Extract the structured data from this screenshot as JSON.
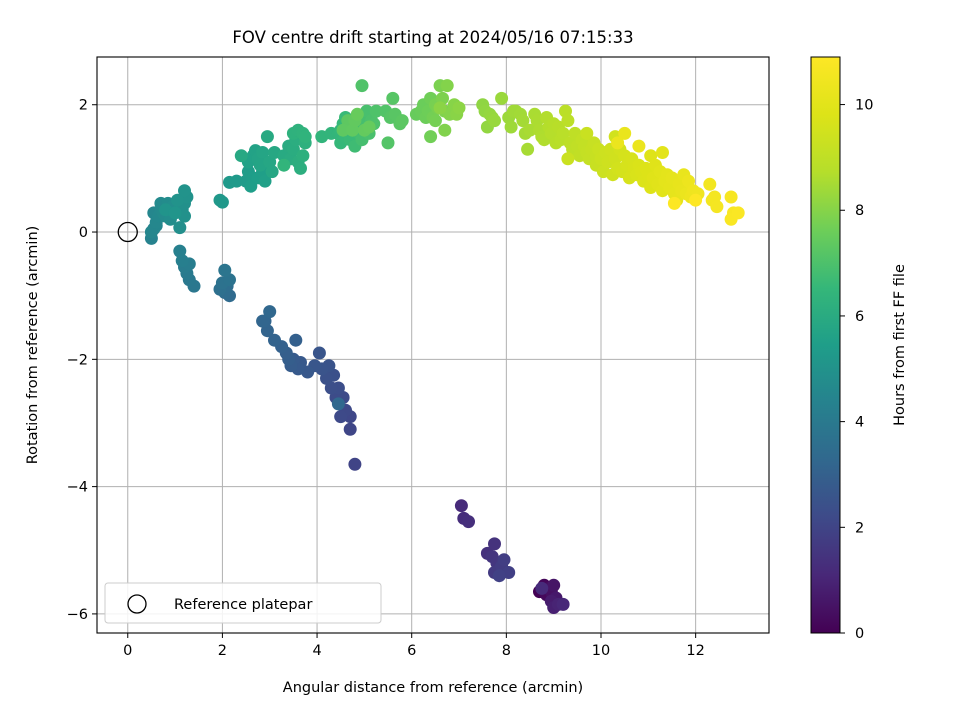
{
  "chart_data": {
    "type": "scatter",
    "title": "FOV centre drift starting at 2024/05/16 07:15:33",
    "xlabel": "Angular distance from reference (arcmin)",
    "ylabel": "Rotation from reference (arcmin)",
    "xlim": [
      -0.65,
      13.55
    ],
    "ylim": [
      -6.3,
      2.75
    ],
    "xticks": [
      0,
      2,
      4,
      6,
      8,
      10,
      12
    ],
    "yticks": [
      -6,
      -4,
      -2,
      0,
      2
    ],
    "xtick_labels": [
      "0",
      "2",
      "4",
      "6",
      "8",
      "10",
      "12"
    ],
    "ytick_labels": [
      "−6",
      "−4",
      "−2",
      "0",
      "2"
    ],
    "grid": true,
    "legend": {
      "label": "Reference platepar",
      "position": "bottom-left"
    },
    "reference_point": {
      "x": 0,
      "y": 0
    },
    "colorbar": {
      "label": "Hours from first FF file",
      "range": [
        0,
        10.9
      ],
      "ticks": [
        0,
        2,
        4,
        6,
        8,
        10
      ],
      "tick_labels": [
        "0",
        "2",
        "4",
        "6",
        "8",
        "10"
      ],
      "colormap": "viridis"
    },
    "point_groups": [
      {
        "hours": [
          0.0,
          1.2
        ],
        "points": [
          [
            8.7,
            -5.65
          ],
          [
            8.8,
            -5.55
          ],
          [
            8.85,
            -5.7
          ],
          [
            8.9,
            -5.6
          ],
          [
            8.95,
            -5.65
          ],
          [
            9.0,
            -5.55
          ],
          [
            9.05,
            -5.75
          ],
          [
            8.95,
            -5.8
          ],
          [
            9.0,
            -5.9
          ],
          [
            9.1,
            -5.85
          ],
          [
            9.2,
            -5.85
          ],
          [
            8.75,
            -5.6
          ]
        ]
      },
      {
        "hours": [
          1.2,
          1.9
        ],
        "points": [
          [
            7.05,
            -4.3
          ],
          [
            7.1,
            -4.5
          ],
          [
            7.2,
            -4.55
          ],
          [
            7.6,
            -5.05
          ],
          [
            7.75,
            -4.9
          ],
          [
            7.7,
            -5.1
          ],
          [
            7.8,
            -5.2
          ],
          [
            7.85,
            -5.3
          ],
          [
            7.75,
            -5.35
          ],
          [
            7.9,
            -5.25
          ],
          [
            7.95,
            -5.15
          ],
          [
            8.05,
            -5.35
          ],
          [
            7.85,
            -5.4
          ]
        ]
      },
      {
        "hours": [
          2.0,
          3.3
        ],
        "points": [
          [
            4.8,
            -3.65
          ],
          [
            4.7,
            -3.1
          ],
          [
            4.7,
            -2.9
          ],
          [
            4.6,
            -2.8
          ],
          [
            4.5,
            -2.9
          ],
          [
            4.55,
            -2.6
          ],
          [
            4.4,
            -2.6
          ],
          [
            4.45,
            -2.45
          ],
          [
            4.3,
            -2.45
          ],
          [
            4.35,
            -2.25
          ],
          [
            4.2,
            -2.3
          ],
          [
            4.25,
            -2.1
          ],
          [
            4.1,
            -2.15
          ],
          [
            4.05,
            -1.9
          ],
          [
            3.95,
            -2.1
          ],
          [
            3.8,
            -2.2
          ],
          [
            3.65,
            -2.05
          ],
          [
            3.6,
            -2.15
          ],
          [
            3.5,
            -2.0
          ],
          [
            3.45,
            -2.1
          ],
          [
            3.4,
            -2.0
          ],
          [
            3.35,
            -1.9
          ],
          [
            3.55,
            -1.7
          ],
          [
            3.25,
            -1.8
          ],
          [
            3.1,
            -1.7
          ],
          [
            2.95,
            -1.55
          ],
          [
            2.9,
            -1.4
          ],
          [
            2.85,
            -1.4
          ],
          [
            3.0,
            -1.25
          ],
          [
            4.45,
            -2.7
          ]
        ]
      },
      {
        "hours": [
          3.4,
          4.5
        ],
        "points": [
          [
            2.15,
            -1.0
          ],
          [
            2.05,
            -0.95
          ],
          [
            2.1,
            -0.85
          ],
          [
            1.95,
            -0.9
          ],
          [
            2.0,
            -0.8
          ],
          [
            2.15,
            -0.75
          ],
          [
            2.05,
            -0.6
          ],
          [
            1.4,
            -0.85
          ],
          [
            1.3,
            -0.75
          ],
          [
            1.25,
            -0.65
          ],
          [
            1.2,
            -0.55
          ],
          [
            1.3,
            -0.5
          ],
          [
            1.15,
            -0.45
          ],
          [
            1.1,
            -0.3
          ],
          [
            0.5,
            -0.1
          ],
          [
            0.55,
            0.05
          ],
          [
            0.6,
            0.1
          ]
        ]
      },
      {
        "hours": [
          4.5,
          5.1
        ],
        "points": [
          [
            0.5,
            0.0
          ],
          [
            0.55,
            0.3
          ],
          [
            0.6,
            0.15
          ],
          [
            0.65,
            0.25
          ],
          [
            0.7,
            0.35
          ],
          [
            0.7,
            0.45
          ],
          [
            0.75,
            0.3
          ],
          [
            0.8,
            0.25
          ],
          [
            0.85,
            0.45
          ],
          [
            0.9,
            0.2
          ],
          [
            0.95,
            0.4
          ],
          [
            1.1,
            0.07
          ],
          [
            1.15,
            0.35
          ],
          [
            1.2,
            0.45
          ],
          [
            1.2,
            0.25
          ],
          [
            1.25,
            0.55
          ],
          [
            1.2,
            0.65
          ],
          [
            1.05,
            0.5
          ],
          [
            0.8,
            0.35
          ],
          [
            1.0,
            0.3
          ]
        ]
      },
      {
        "hours": [
          5.2,
          6.4
        ],
        "points": [
          [
            1.95,
            0.5
          ],
          [
            2.0,
            0.47
          ],
          [
            2.15,
            0.78
          ],
          [
            2.3,
            0.8
          ],
          [
            2.5,
            0.8
          ],
          [
            2.55,
            0.95
          ],
          [
            2.65,
            0.85
          ],
          [
            2.6,
            0.72
          ],
          [
            2.75,
            0.85
          ],
          [
            2.85,
            0.95
          ],
          [
            2.9,
            0.8
          ],
          [
            2.55,
            1.1
          ],
          [
            2.65,
            1.2
          ],
          [
            2.7,
            1.28
          ],
          [
            2.75,
            1.15
          ],
          [
            2.8,
            1.05
          ],
          [
            2.85,
            1.25
          ],
          [
            3.0,
            1.1
          ],
          [
            3.05,
            0.95
          ],
          [
            3.1,
            1.25
          ],
          [
            2.4,
            1.2
          ],
          [
            2.95,
            1.5
          ],
          [
            3.3,
            1.2
          ],
          [
            3.4,
            1.35
          ],
          [
            3.45,
            1.15
          ],
          [
            3.5,
            1.3
          ],
          [
            3.55,
            1.45
          ],
          [
            3.6,
            1.1
          ],
          [
            3.65,
            1.0
          ],
          [
            3.7,
            1.2
          ],
          [
            3.75,
            1.4
          ],
          [
            3.5,
            1.55
          ],
          [
            3.6,
            1.6
          ],
          [
            3.7,
            1.55
          ],
          [
            3.75,
            1.5
          ],
          [
            3.3,
            1.05
          ]
        ]
      },
      {
        "hours": [
          6.4,
          7.5
        ],
        "points": [
          [
            4.1,
            1.5
          ],
          [
            4.3,
            1.55
          ],
          [
            4.45,
            1.55
          ],
          [
            4.5,
            1.6
          ],
          [
            4.5,
            1.4
          ],
          [
            4.55,
            1.7
          ],
          [
            4.6,
            1.5
          ],
          [
            4.6,
            1.8
          ],
          [
            4.7,
            1.45
          ],
          [
            4.7,
            1.65
          ],
          [
            4.75,
            1.75
          ],
          [
            4.8,
            1.35
          ],
          [
            4.85,
            1.65
          ],
          [
            4.9,
            1.55
          ],
          [
            4.95,
            1.8
          ],
          [
            4.95,
            1.45
          ],
          [
            5.0,
            1.7
          ],
          [
            5.05,
            1.9
          ],
          [
            5.1,
            1.55
          ],
          [
            5.15,
            1.75
          ],
          [
            5.2,
            1.7
          ],
          [
            5.25,
            1.9
          ],
          [
            4.95,
            2.3
          ],
          [
            5.45,
            1.9
          ],
          [
            5.5,
            1.4
          ],
          [
            5.55,
            1.8
          ],
          [
            5.6,
            2.1
          ],
          [
            5.65,
            1.85
          ],
          [
            5.75,
            1.7
          ],
          [
            5.8,
            1.75
          ],
          [
            4.65,
            1.75
          ],
          [
            4.55,
            1.6
          ],
          [
            4.75,
            1.6
          ],
          [
            4.8,
            1.75
          ],
          [
            5.0,
            1.6
          ],
          [
            5.1,
            1.65
          ],
          [
            4.85,
            1.85
          ]
        ]
      },
      {
        "hours": [
          7.5,
          8.4
        ],
        "points": [
          [
            6.1,
            1.85
          ],
          [
            6.2,
            1.9
          ],
          [
            6.25,
            2.0
          ],
          [
            6.3,
            1.8
          ],
          [
            6.35,
            1.9
          ],
          [
            6.4,
            2.1
          ],
          [
            6.4,
            1.5
          ],
          [
            6.45,
            1.8
          ],
          [
            6.5,
            1.75
          ],
          [
            6.5,
            2.0
          ],
          [
            6.55,
            1.95
          ],
          [
            6.6,
            2.3
          ],
          [
            6.65,
            2.1
          ],
          [
            6.7,
            1.9
          ],
          [
            6.7,
            1.6
          ],
          [
            6.75,
            2.3
          ],
          [
            6.8,
            1.85
          ],
          [
            6.9,
            2.0
          ],
          [
            6.95,
            1.85
          ],
          [
            6.6,
            1.95
          ],
          [
            7.0,
            1.95
          ],
          [
            7.5,
            2.0
          ],
          [
            7.55,
            1.9
          ],
          [
            7.6,
            1.65
          ],
          [
            7.65,
            1.85
          ],
          [
            7.7,
            1.8
          ],
          [
            7.75,
            1.75
          ],
          [
            7.9,
            2.1
          ],
          [
            8.05,
            1.8
          ],
          [
            8.1,
            1.65
          ],
          [
            8.15,
            1.9
          ]
        ]
      },
      {
        "hours": [
          8.4,
          9.3
        ],
        "points": [
          [
            8.2,
            1.9
          ],
          [
            8.3,
            1.85
          ],
          [
            8.35,
            1.75
          ],
          [
            8.4,
            1.55
          ],
          [
            8.45,
            1.3
          ],
          [
            8.5,
            1.6
          ],
          [
            8.6,
            1.85
          ],
          [
            8.65,
            1.75
          ],
          [
            8.7,
            1.6
          ],
          [
            8.75,
            1.5
          ],
          [
            8.8,
            1.45
          ],
          [
            8.85,
            1.8
          ],
          [
            8.9,
            1.65
          ],
          [
            8.95,
            1.55
          ],
          [
            9.0,
            1.7
          ],
          [
            9.05,
            1.4
          ],
          [
            9.1,
            1.65
          ],
          [
            9.15,
            1.45
          ],
          [
            9.2,
            1.55
          ],
          [
            9.25,
            1.9
          ],
          [
            9.3,
            1.75
          ],
          [
            9.35,
            1.4
          ],
          [
            9.4,
            1.3
          ],
          [
            9.45,
            1.55
          ],
          [
            9.5,
            1.35
          ],
          [
            9.55,
            1.2
          ],
          [
            9.6,
            1.45
          ],
          [
            9.65,
            1.35
          ],
          [
            9.7,
            1.25
          ],
          [
            9.75,
            1.15
          ],
          [
            9.8,
            1.3
          ],
          [
            9.85,
            1.4
          ],
          [
            9.9,
            1.2
          ],
          [
            9.9,
            1.05
          ],
          [
            9.7,
            1.55
          ],
          [
            9.3,
            1.15
          ]
        ]
      },
      {
        "hours": [
          9.3,
          10.3
        ],
        "points": [
          [
            9.95,
            1.3
          ],
          [
            10.0,
            1.15
          ],
          [
            10.05,
            0.95
          ],
          [
            10.1,
            1.25
          ],
          [
            10.15,
            1.1
          ],
          [
            10.2,
            1.3
          ],
          [
            10.25,
            0.9
          ],
          [
            10.3,
            1.15
          ],
          [
            10.3,
            1.5
          ],
          [
            10.35,
            1.0
          ],
          [
            10.4,
            1.3
          ],
          [
            10.45,
            0.95
          ],
          [
            10.5,
            1.2
          ],
          [
            10.55,
            1.05
          ],
          [
            10.6,
            0.85
          ],
          [
            10.65,
            1.15
          ],
          [
            10.7,
            1.0
          ],
          [
            10.75,
            0.9
          ],
          [
            10.8,
            1.05
          ],
          [
            10.85,
            0.95
          ],
          [
            10.9,
            0.8
          ],
          [
            10.95,
            1.0
          ],
          [
            11.0,
            0.9
          ],
          [
            11.05,
            0.7
          ],
          [
            11.05,
            1.2
          ],
          [
            11.1,
            0.85
          ],
          [
            11.15,
            1.05
          ],
          [
            11.2,
            0.75
          ],
          [
            11.25,
            0.95
          ],
          [
            11.3,
            0.65
          ],
          [
            11.3,
            1.25
          ],
          [
            11.35,
            0.8
          ],
          [
            11.4,
            0.9
          ],
          [
            11.45,
            0.7
          ],
          [
            11.5,
            0.85
          ],
          [
            11.55,
            0.6
          ],
          [
            11.6,
            0.5
          ],
          [
            11.65,
            0.75
          ],
          [
            11.7,
            0.65
          ],
          [
            11.75,
            0.9
          ],
          [
            10.5,
            1.55
          ],
          [
            10.35,
            1.4
          ],
          [
            10.8,
            1.35
          ]
        ]
      },
      {
        "hours": [
          10.3,
          10.9
        ],
        "points": [
          [
            11.8,
            0.6
          ],
          [
            11.85,
            0.8
          ],
          [
            11.9,
            0.55
          ],
          [
            11.95,
            0.65
          ],
          [
            12.05,
            0.6
          ],
          [
            12.3,
            0.75
          ],
          [
            12.35,
            0.5
          ],
          [
            12.4,
            0.55
          ],
          [
            12.45,
            0.4
          ],
          [
            12.75,
            0.55
          ],
          [
            12.8,
            0.3
          ],
          [
            12.75,
            0.2
          ],
          [
            12.9,
            0.3
          ],
          [
            11.55,
            0.45
          ],
          [
            12.0,
            0.5
          ]
        ]
      }
    ]
  }
}
